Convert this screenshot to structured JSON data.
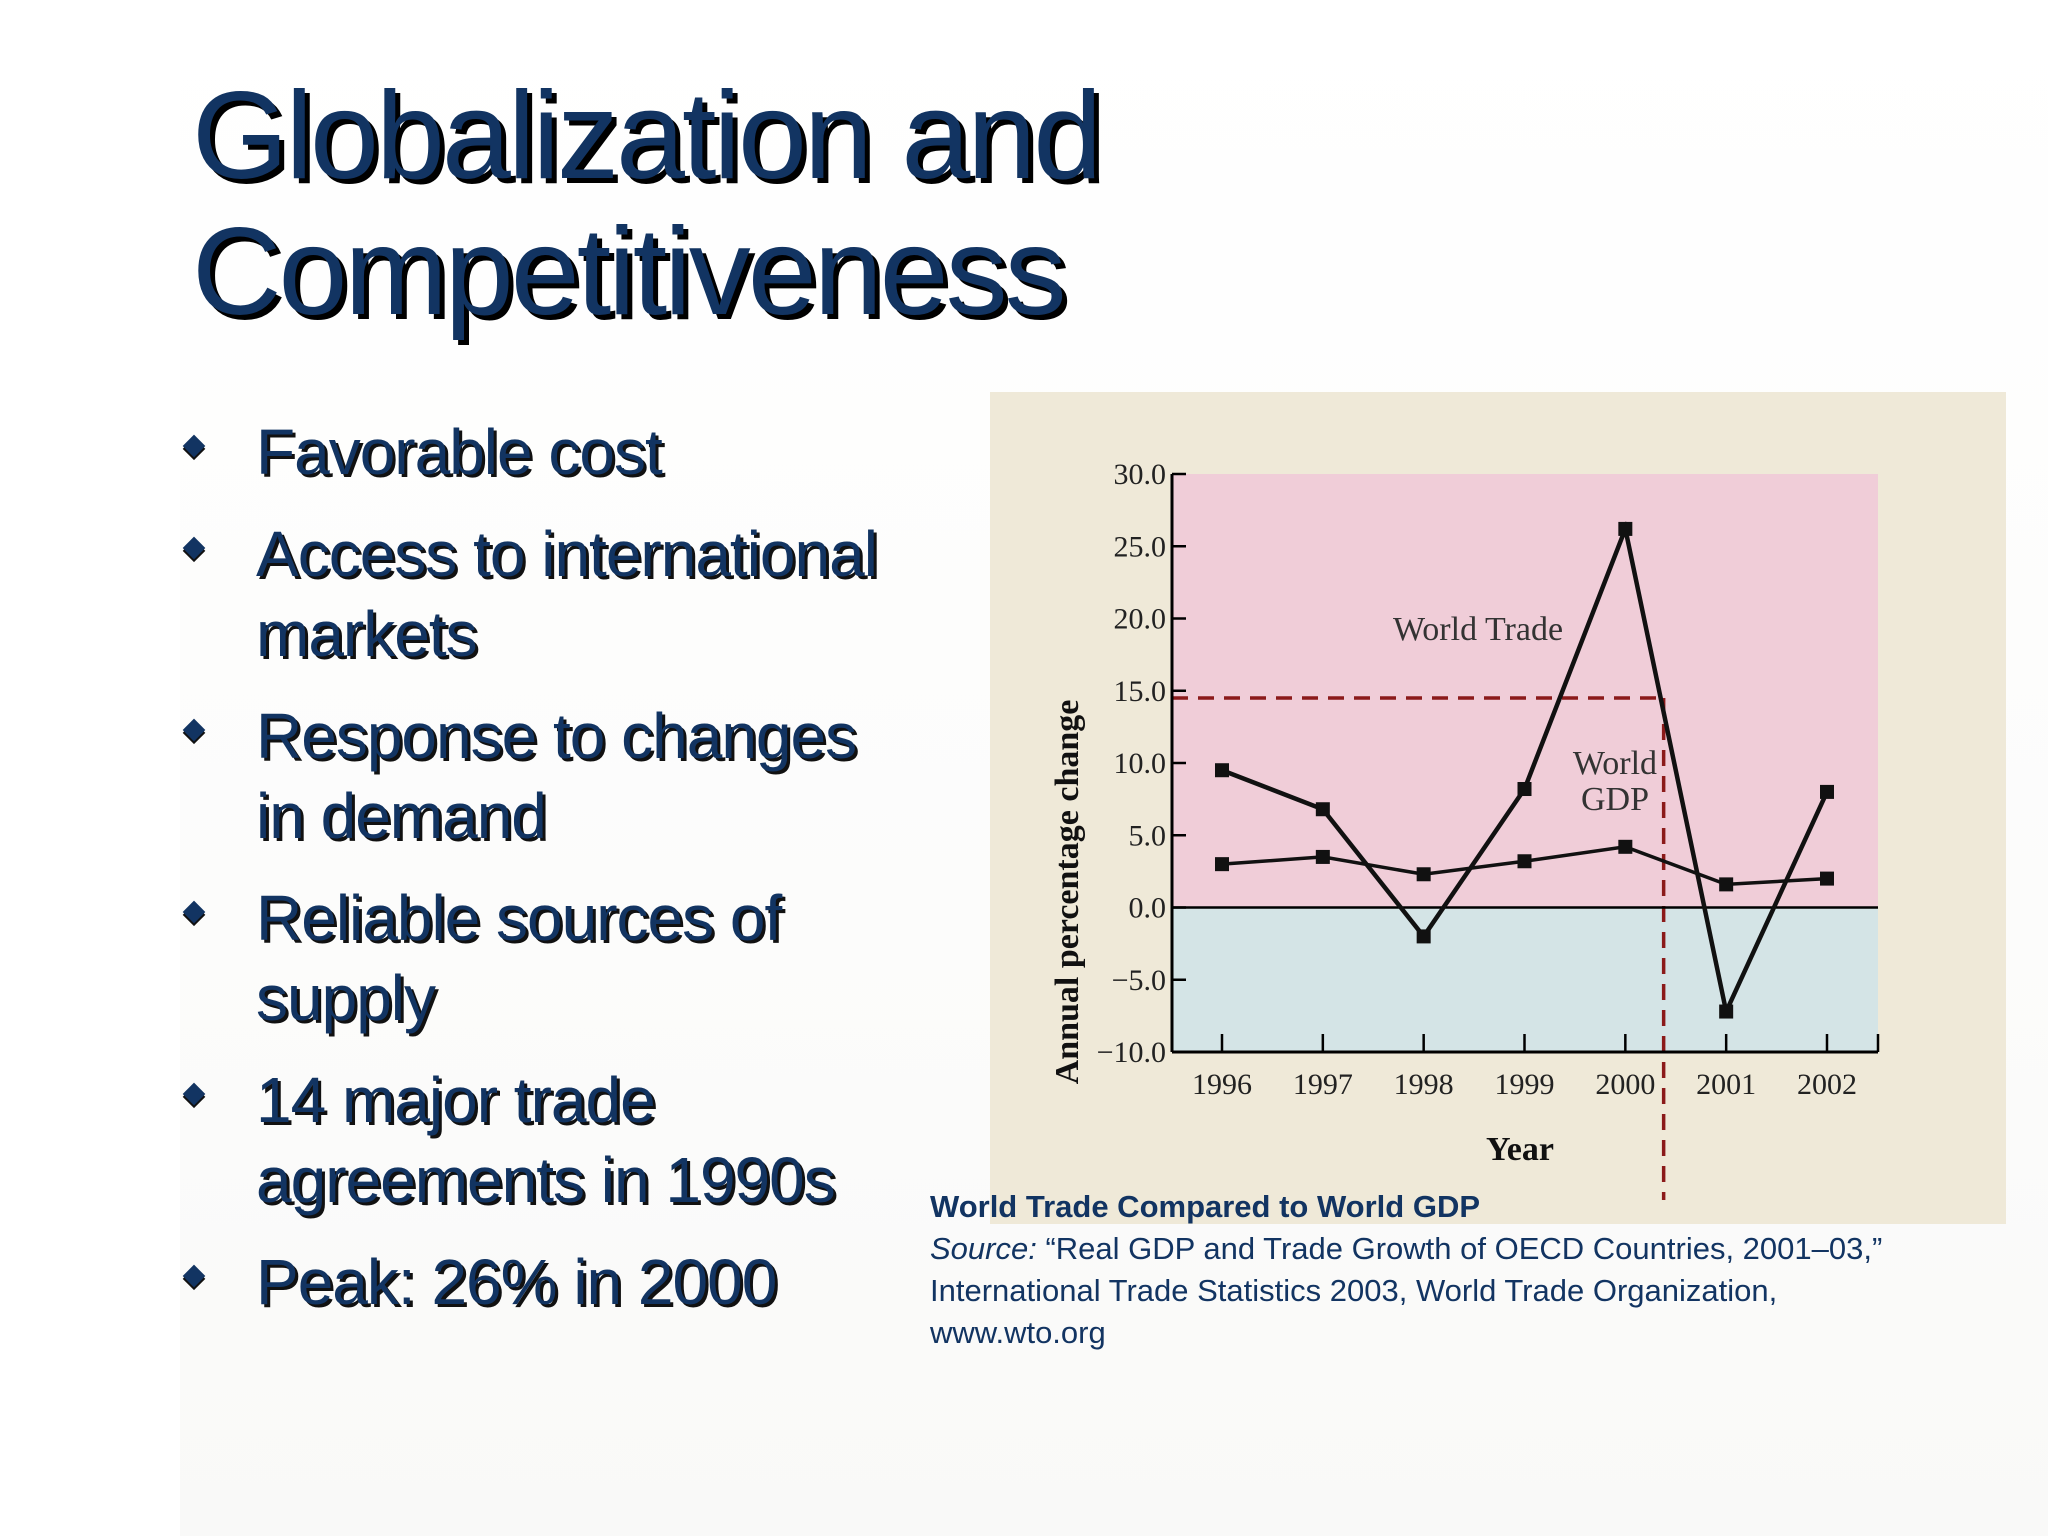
{
  "slide": {
    "title_line1": "Globalization and",
    "title_line2": "Competitiveness",
    "bullets": [
      {
        "line1": "Favorable cost",
        "line2": ""
      },
      {
        "line1": "Access to international",
        "line2": "markets"
      },
      {
        "line1": "Response to changes",
        "line2": "in demand"
      },
      {
        "line1": "Reliable sources of",
        "line2": "supply"
      },
      {
        "line1": "14 major trade",
        "line2": "agreements in 1990s"
      },
      {
        "line1": "Peak: 26% in 2000",
        "line2": ""
      }
    ]
  },
  "caption": {
    "title": "World Trade Compared to World GDP",
    "source_label": "Source:",
    "source_text": " “Real GDP and Trade Growth of OECD Countries, 2001–03,” International Trade Statistics 2003, World Trade Organization, www.wto.org"
  },
  "colors": {
    "positive_region": "#f0cdd8",
    "negative_region": "#d4e4e6",
    "panel": "#efe9d8",
    "reference_line": "#8b1a1a",
    "text": "#123462"
  },
  "chart_data": {
    "type": "line",
    "x": [
      "1996",
      "1997",
      "1998",
      "1999",
      "2000",
      "2001",
      "2002"
    ],
    "series": [
      {
        "name": "World Trade",
        "values": [
          9.5,
          6.8,
          -2.0,
          8.2,
          26.2,
          -7.2,
          8.0
        ]
      },
      {
        "name": "World GDP",
        "values": [
          3.0,
          3.5,
          2.3,
          3.2,
          4.2,
          1.6,
          2.0
        ]
      }
    ],
    "reference_line": {
      "y": 14.5
    },
    "xlabel": "Year",
    "ylabel": "Annual percentage change",
    "ylim": [
      -10.0,
      30.0
    ],
    "yticks": [
      "30.0",
      "25.0",
      "20.0",
      "15.0",
      "10.0",
      "5.0",
      "0.0",
      "−5.0",
      "−10.0"
    ],
    "ytick_values": [
      30,
      25,
      20,
      15,
      10,
      5,
      0,
      -5,
      -10
    ],
    "grid": false,
    "legend": "inline labels"
  }
}
